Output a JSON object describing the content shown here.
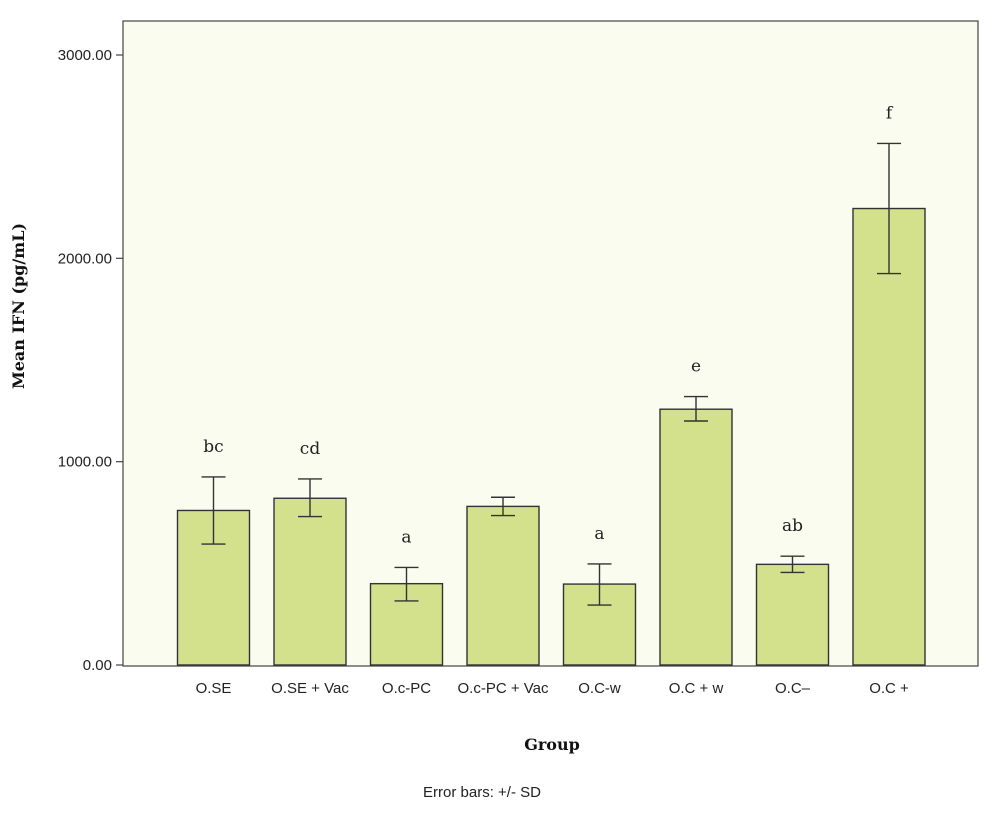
{
  "chart_data": {
    "type": "bar",
    "ylabel": "Mean IFN (pg/mL)",
    "xlabel": "Group",
    "footnote": "Error bars: +/- SD",
    "ylim": [
      0,
      3000
    ],
    "yticks": [
      0,
      1000,
      2000,
      3000
    ],
    "ytick_labels": [
      "0.00",
      "1000.00",
      "2000.00",
      "3000.00"
    ],
    "categories": [
      "O.SE",
      "O.SE + Vac",
      "O.c-PC",
      "O.c-PC + Vac",
      "O.C-w",
      "O.C + w",
      "O.C–",
      "O.C +"
    ],
    "values": [
      760,
      820,
      400,
      780,
      398,
      1258,
      495,
      2245
    ],
    "error_low": [
      595,
      730,
      315,
      735,
      295,
      1200,
      455,
      1925
    ],
    "error_high": [
      925,
      915,
      480,
      825,
      497,
      1320,
      535,
      2565
    ],
    "significance_labels": [
      "bc",
      "cd",
      "a",
      "",
      "a",
      "e",
      "ab",
      "f"
    ],
    "bar_color": "#d3e08c",
    "bar_edge_color": "#333333",
    "grid": false
  }
}
